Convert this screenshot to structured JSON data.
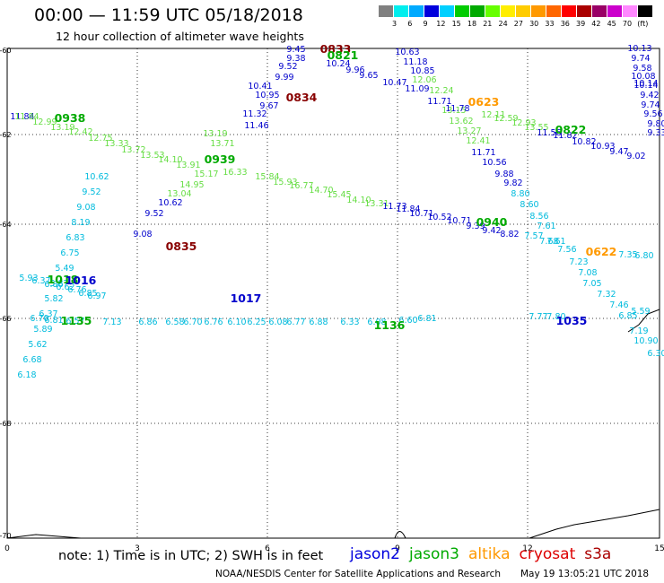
{
  "title": "00:00 — 11:59 UTC 05/18/2018",
  "subtitle": "12 hour collection of altimeter wave heights",
  "legend_scale": {
    "colors": [
      "#808080",
      "#00eeee",
      "#00aaff",
      "#0000dd",
      "#00d0ff",
      "#00cc00",
      "#00aa00",
      "#66ff00",
      "#ffee00",
      "#ffcc00",
      "#ff9900",
      "#ff6600",
      "#ff0000",
      "#aa0000",
      "#990066",
      "#cc00cc",
      "#ff88ff",
      "#000000"
    ],
    "labels": [
      "3",
      "6",
      "9",
      "12",
      "15",
      "18",
      "21",
      "24",
      "27",
      "30",
      "33",
      "36",
      "39",
      "42",
      "45",
      "70",
      "(ft)"
    ]
  },
  "map": {
    "x_ticks": [
      "0",
      "3",
      "6",
      "9",
      "12",
      "15"
    ],
    "y_ticks": [
      "-60",
      "-62",
      "-64",
      "-66",
      "-68",
      "-70"
    ]
  },
  "tracks": [
    {
      "color": "#00bbdd",
      "time": "",
      "points": [
        [
          "6.18",
          ""
        ],
        [
          "6.68",
          ""
        ],
        [
          "5.62",
          ""
        ],
        [
          "5.89",
          ""
        ],
        [
          "6.37",
          ""
        ],
        [
          "5.82",
          ""
        ],
        [
          "5.87",
          ""
        ],
        [
          "5.49",
          ""
        ],
        [
          "6.75",
          ""
        ],
        [
          "6.83",
          ""
        ],
        [
          "8.19",
          ""
        ],
        [
          "9.08",
          ""
        ],
        [
          "9.52",
          ""
        ],
        [
          "10.62",
          ""
        ]
      ]
    },
    {
      "color": "#0000cc",
      "time": "",
      "points": [
        [
          "11.84",
          ""
        ],
        [
          "9.52",
          ""
        ],
        [
          "10.62",
          ""
        ],
        [
          "9.08",
          ""
        ],
        [
          "10.41",
          ""
        ],
        [
          "10.95",
          ""
        ],
        [
          "9.67",
          ""
        ],
        [
          "11.32",
          ""
        ],
        [
          "11.46",
          ""
        ],
        [
          "9.99",
          ""
        ],
        [
          "9.52",
          ""
        ],
        [
          "9.38",
          ""
        ],
        [
          "9.45",
          ""
        ]
      ]
    },
    {
      "color": "#0000cc",
      "time": "",
      "points": [
        [
          "10.63",
          ""
        ],
        [
          "11.18",
          ""
        ],
        [
          "10.85",
          ""
        ],
        [
          "10.47",
          ""
        ],
        [
          "11.09",
          ""
        ],
        [
          "10.24",
          ""
        ],
        [
          "9.96",
          ""
        ],
        [
          "9.65",
          ""
        ],
        [
          "10.14",
          ""
        ]
      ]
    },
    {
      "color": "#66dd44",
      "time": "",
      "points": [
        [
          "12.06",
          ""
        ],
        [
          "12.24",
          ""
        ],
        [
          "13.15",
          ""
        ],
        [
          "13.62",
          ""
        ],
        [
          "13.27",
          ""
        ],
        [
          "12.41",
          ""
        ],
        [
          "12.11",
          ""
        ],
        [
          "12.59",
          ""
        ],
        [
          "12.93",
          ""
        ],
        [
          "13.55",
          ""
        ]
      ]
    },
    {
      "color": "#0000cc",
      "time": "",
      "points": [
        [
          "11.71",
          ""
        ],
        [
          "11.78",
          ""
        ],
        [
          "11.71",
          ""
        ],
        [
          "10.56",
          ""
        ],
        [
          "9.88",
          ""
        ],
        [
          "9.82",
          ""
        ],
        [
          "11.56",
          ""
        ],
        [
          "11.82",
          ""
        ],
        [
          "10.82",
          ""
        ],
        [
          "10.93",
          ""
        ],
        [
          "9.47",
          ""
        ],
        [
          "9.02",
          ""
        ]
      ]
    },
    {
      "color": "#00bbdd",
      "time": "",
      "points": [
        [
          "8.80",
          ""
        ],
        [
          "8.60",
          ""
        ],
        [
          "8.56",
          ""
        ],
        [
          "7.61",
          ""
        ],
        [
          "7.57",
          ""
        ],
        [
          "7.68",
          ""
        ],
        [
          "7.61",
          ""
        ],
        [
          "7.56",
          ""
        ],
        [
          "7.23",
          ""
        ],
        [
          "7.08",
          ""
        ],
        [
          "7.05",
          ""
        ],
        [
          "7.32",
          ""
        ],
        [
          "7.46",
          ""
        ]
      ]
    },
    {
      "color": "#0000cc",
      "time": "",
      "points": [
        [
          "10.13",
          ""
        ],
        [
          "9.74",
          ""
        ],
        [
          "9.58",
          ""
        ],
        [
          "10.08",
          ""
        ],
        [
          "10.14",
          ""
        ],
        [
          "9.42",
          ""
        ],
        [
          "9.74",
          ""
        ],
        [
          "9.56",
          ""
        ],
        [
          "9.80",
          ""
        ],
        [
          "9.33",
          ""
        ]
      ]
    },
    {
      "color": "#66dd44",
      "time": "",
      "points": [
        [
          "11.84",
          ""
        ],
        [
          "12.99",
          ""
        ],
        [
          "13.19",
          ""
        ],
        [
          "12.42",
          ""
        ],
        [
          "12.75",
          ""
        ],
        [
          "13.33",
          ""
        ],
        [
          "13.72",
          ""
        ],
        [
          "13.53",
          ""
        ],
        [
          "14.10",
          ""
        ],
        [
          "13.91",
          ""
        ],
        [
          "13.19",
          ""
        ],
        [
          "13.71",
          ""
        ],
        [
          "16.33",
          ""
        ],
        [
          "15.17",
          ""
        ],
        [
          "14.95",
          ""
        ],
        [
          "13.04",
          ""
        ],
        [
          "15.84",
          ""
        ],
        [
          "15.93",
          ""
        ],
        [
          "16.77",
          ""
        ],
        [
          "14.70",
          ""
        ],
        [
          "15.45",
          ""
        ],
        [
          "14.10",
          ""
        ],
        [
          "13.31",
          ""
        ]
      ]
    },
    {
      "color": "#0000cc",
      "time": "",
      "points": [
        [
          "11.73",
          ""
        ],
        [
          "11.84",
          ""
        ],
        [
          "10.71",
          ""
        ],
        [
          "10.52",
          ""
        ],
        [
          "10.71",
          ""
        ],
        [
          "9.39",
          ""
        ],
        [
          "9.42",
          ""
        ],
        [
          "8.82",
          ""
        ]
      ]
    },
    {
      "color": "#00bbdd",
      "time": "",
      "points": [
        [
          "5.93",
          ""
        ],
        [
          "6.37",
          ""
        ],
        [
          "6.86",
          ""
        ],
        [
          "6.62",
          ""
        ],
        [
          "6.76",
          ""
        ],
        [
          "6.85",
          ""
        ],
        [
          "6.97",
          ""
        ]
      ]
    },
    {
      "color": "#00bbdd",
      "time": "",
      "points": [
        [
          "6.70",
          ""
        ],
        [
          "6.81",
          ""
        ],
        [
          "6.57",
          ""
        ],
        [
          "7.13",
          ""
        ],
        [
          "6.86",
          ""
        ],
        [
          "6.58",
          ""
        ],
        [
          "6.70",
          ""
        ],
        [
          "6.76",
          ""
        ],
        [
          "6.10",
          ""
        ],
        [
          "6.25",
          ""
        ],
        [
          "6.08",
          ""
        ],
        [
          "6.77",
          ""
        ],
        [
          "6.88",
          ""
        ],
        [
          "6.33",
          ""
        ],
        [
          "6.08",
          ""
        ],
        [
          "6.60",
          ""
        ],
        [
          "6.81",
          ""
        ],
        [
          "7.77",
          ""
        ],
        [
          "7.80",
          ""
        ]
      ]
    },
    {
      "color": "#00bbdd",
      "time": "",
      "points": [
        [
          "7.35",
          ""
        ],
        [
          "6.80",
          ""
        ],
        [
          "5.59",
          ""
        ],
        [
          "6.85",
          ""
        ],
        [
          "7.19",
          ""
        ],
        [
          "10.90",
          ""
        ],
        [
          "6.30",
          ""
        ]
      ]
    }
  ],
  "pass_labels": [
    {
      "text": "0938",
      "color": "#00aa00"
    },
    {
      "text": "0834",
      "color": "#880000"
    },
    {
      "text": "0833",
      "color": "#880000"
    },
    {
      "text": "0821",
      "color": "#00aa00"
    },
    {
      "text": "0623",
      "color": "#ff9900"
    },
    {
      "text": "0822",
      "color": "#00aa00"
    },
    {
      "text": "0939",
      "color": "#00aa00"
    },
    {
      "text": "0835",
      "color": "#880000"
    },
    {
      "text": "0940",
      "color": "#00aa00"
    },
    {
      "text": "0622",
      "color": "#ff9900"
    },
    {
      "text": "1018",
      "color": "#00aa00"
    },
    {
      "text": "1016",
      "color": "#0000cc"
    },
    {
      "text": "1017",
      "color": "#0000cc"
    },
    {
      "text": "1135",
      "color": "#00aa00"
    },
    {
      "text": "1136",
      "color": "#00aa00"
    },
    {
      "text": "1035",
      "color": "#0000cc"
    }
  ],
  "note": "note: 1) Time is in UTC; 2) SWH is in feet",
  "satellites": [
    {
      "name": "jason2",
      "color": "#0000dd"
    },
    {
      "name": "jason3",
      "color": "#00aa00"
    },
    {
      "name": "altika",
      "color": "#ff9900"
    },
    {
      "name": "cryosat",
      "color": "#dd0000"
    },
    {
      "name": "s3a",
      "color": "#aa0000"
    }
  ],
  "footer_left": "NOAA/NESDIS Center for Satellite Applications and Research",
  "footer_right": "May 19 13:05:21 UTC 2018"
}
